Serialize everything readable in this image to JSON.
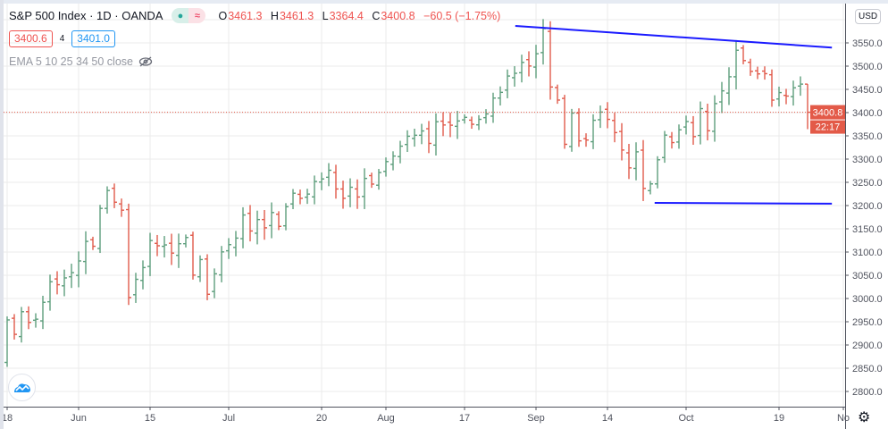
{
  "header": {
    "title": "S&P 500 Index · 1D · OANDA",
    "status_dot_icon": "market-open-dot",
    "status_wave_icon": "≈",
    "ohlc": {
      "o_label": "O",
      "o": "3461.3",
      "h_label": "H",
      "h": "3461.3",
      "l_label": "L",
      "l": "3364.4",
      "c_label": "C",
      "c": "3400.8",
      "change": "−60.5 (−1.75%)"
    },
    "sell_price": "3400.6",
    "spread": "4",
    "buy_price": "3401.0",
    "indicator": "EMA 5 10 25 34 50 close",
    "indicator_visibility_icon": "eye-off-icon"
  },
  "price_axis": {
    "currency": "USD",
    "last_price": "3400.8",
    "countdown": "22:17"
  },
  "colors": {
    "up": "#5d9e7c",
    "down": "#e05a4b",
    "trendline": "#1a1aff",
    "last": "#e35a48",
    "grid": "#ebebeb"
  },
  "chart_data": {
    "type": "ohlc",
    "title": "S&P 500 Index · 1D · OANDA",
    "first_index": -1,
    "closes": [
      2863.7,
      2953.9,
      2922.9,
      2971.6,
      2948.5,
      2955.5,
      2991.8,
      3036.1,
      3029.7,
      3044.3,
      3055.7,
      3080.8,
      3122.9,
      3112.4,
      3193.9,
      3232.4,
      3207.2,
      3190.1,
      3002.1,
      3041.3,
      3066.6,
      3124.7,
      3113.5,
      3115.3,
      3097.7,
      3117.9,
      3131.3,
      3050.3,
      3083.8,
      3009.1,
      3053.2,
      3100.3,
      3115.9,
      3130.0,
      3179.7,
      3145.3,
      3169.9,
      3152.1,
      3185.0,
      3155.2,
      3197.5,
      3226.6,
      3215.6,
      3224.7,
      3251.8,
      3257.3,
      3276.0,
      3235.7,
      3215.6,
      3239.4,
      3218.4,
      3258.4,
      3246.2,
      3271.1,
      3294.6,
      3306.5,
      3327.8,
      3349.2,
      3351.3,
      3360.5,
      3333.7,
      3380.4,
      3373.4,
      3372.9,
      3382.0,
      3389.8,
      3374.9,
      3385.5,
      3397.2,
      3431.3,
      3443.6,
      3478.7,
      3484.6,
      3508.0,
      3500.3,
      3526.7,
      3580.8,
      3455.1,
      3427.0,
      3331.8,
      3399.0,
      3339.2,
      3341.0,
      3383.5,
      3401.2,
      3385.5,
      3357.0,
      3319.5,
      3281.1,
      3315.6,
      3236.9,
      3246.6,
      3298.5,
      3351.6,
      3335.5,
      3363.0,
      3380.8,
      3348.4,
      3408.6,
      3361.0,
      3419.4,
      3446.8,
      3477.1,
      3534.2,
      3511.9,
      3488.7,
      3483.3,
      3483.8,
      3426.9,
      3443.1,
      3435.6,
      3453.5,
      3461.3,
      3400.8
    ],
    "last_bar": {
      "o": 3461.3,
      "h": 3461.3,
      "l": 3364.4,
      "c": 3400.8
    },
    "ylim": [
      2775,
      3640
    ],
    "y_ticks": [
      2800,
      2850,
      2900,
      2950,
      3000,
      3050,
      3100,
      3150,
      3200,
      3250,
      3300,
      3350,
      3400,
      3450,
      3500,
      3550
    ],
    "x_ticks": [
      {
        "label": "18",
        "index": 0
      },
      {
        "label": "Jun",
        "index": 10
      },
      {
        "label": "15",
        "index": 20
      },
      {
        "label": "Jul",
        "index": 31
      },
      {
        "label": "20",
        "index": 44
      },
      {
        "label": "Aug",
        "index": 53
      },
      {
        "label": "17",
        "index": 64
      },
      {
        "label": "Sep",
        "index": 74
      },
      {
        "label": "14",
        "index": 84
      },
      {
        "label": "Oct",
        "index": 95
      },
      {
        "label": "19",
        "index": 108
      },
      {
        "label": "No",
        "index": 117
      }
    ],
    "trendlines": [
      {
        "name": "resistance",
        "from": {
          "index": 71.1,
          "price": 3586.5
        },
        "to": {
          "index": 115.4,
          "price": 3540
        }
      },
      {
        "name": "support",
        "from": {
          "index": 90.6,
          "price": 3205.8
        },
        "to": {
          "index": 115.4,
          "price": 3204
        }
      }
    ]
  }
}
